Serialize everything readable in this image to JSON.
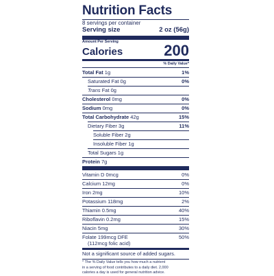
{
  "title": "Nutrition Facts",
  "servings": "8 servings per container",
  "serving_size_label": "Serving size",
  "serving_size_value": "2 oz (56g)",
  "amount_per_serving": "Amount Per Serving",
  "calories_label": "Calories",
  "calories_value": "200",
  "dv_header": "% Daily Value*",
  "nutrients": [
    {
      "label": "Total Fat",
      "amount": "1g",
      "dv": "1%"
    },
    {
      "label": "Saturated Fat",
      "amount": "0g",
      "dv": "0%"
    },
    {
      "label": "Trans",
      "amount": "Fat 0g",
      "dv": ""
    },
    {
      "label": "Cholesterol",
      "amount": "0mg",
      "dv": "0%"
    },
    {
      "label": "Sodium",
      "amount": "0mg",
      "dv": "0%"
    },
    {
      "label": "Total Carbohydrate",
      "amount": "42g",
      "dv": "15%"
    },
    {
      "label": "Dietary Fiber",
      "amount": "3g",
      "dv": "11%"
    },
    {
      "label": "Soluble Fiber",
      "amount": "2g",
      "dv": ""
    },
    {
      "label": "Insoluble Fiber",
      "amount": "1g",
      "dv": ""
    },
    {
      "label": "Total Sugars",
      "amount": "1g",
      "dv": ""
    },
    {
      "label": "Protein",
      "amount": "7g",
      "dv": ""
    }
  ],
  "vitamins": [
    {
      "text": "Vitamin D 0mcg",
      "dv": "0%"
    },
    {
      "text": "Calcium 12mg",
      "dv": "0%"
    },
    {
      "text": "Iron 2mg",
      "dv": "10%"
    },
    {
      "text": "Potassium 118mg",
      "dv": "2%"
    },
    {
      "text": "Thiamin 0.5mg",
      "dv": "40%"
    },
    {
      "text": "Riboflavin 0.2mg",
      "dv": "15%"
    },
    {
      "text": "Niacin 5mg",
      "dv": "30%"
    },
    {
      "text": "Folate 199mcg DFE",
      "dv": "50%"
    }
  ],
  "folate_sub": "(112mcg folic acid)",
  "added_sugars_note": "Not a significant source of added sugars.",
  "footnote": [
    "* The % Daily Value tells you how much a nutrient",
    "in a serving of food contributes to a daily diet. 2,000",
    "calories a day is used for general nutrition advice."
  ]
}
